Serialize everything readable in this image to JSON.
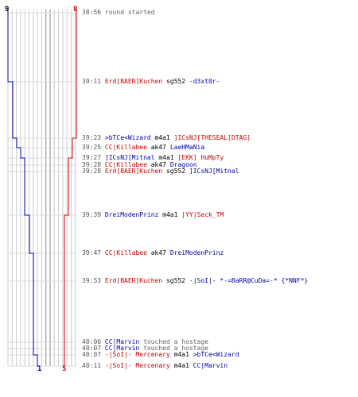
{
  "scores": {
    "blue_start": "9",
    "red_start": "8",
    "blue_end": "1",
    "red_end": "5"
  },
  "colors": {
    "blue_team": "#0000aa",
    "red_team": "#cc0000",
    "grid": "#cccccc",
    "grid_dark": "#888888",
    "timestamp": "#555555"
  },
  "events": [
    {
      "time": "38:56",
      "parts": [
        {
          "t": "round started",
          "c": "gray"
        }
      ]
    },
    {
      "time": "39:11",
      "parts": [
        {
          "t": "Erd[BAER]Kuchen",
          "c": "red"
        },
        {
          "t": " sg552 ",
          "c": "black"
        },
        {
          "t": "-d3xt0r-",
          "c": "blue"
        }
      ]
    },
    {
      "time": "39:23",
      "parts": [
        {
          "t": ">bTCe<Wizard",
          "c": "blue"
        },
        {
          "t": " m4a1 ",
          "c": "black"
        },
        {
          "t": "]ICsNJ[THESEAL[DTAG]",
          "c": "red"
        }
      ]
    },
    {
      "time": "39:25",
      "parts": [
        {
          "t": "CC|Killabee",
          "c": "red"
        },
        {
          "t": " ak47 ",
          "c": "black"
        },
        {
          "t": "LaeHMaNia",
          "c": "blue"
        }
      ]
    },
    {
      "time": "39:27",
      "parts": [
        {
          "t": "]ICsNJ[Mitnal",
          "c": "blue"
        },
        {
          "t": " m4a1 ",
          "c": "black"
        },
        {
          "t": "[EKK] HuMpTy",
          "c": "red"
        }
      ]
    },
    {
      "time": "39:28",
      "parts": [
        {
          "t": "CC|Killabee",
          "c": "red"
        },
        {
          "t": " ak47 ",
          "c": "black"
        },
        {
          "t": "Dragoon",
          "c": "blue"
        }
      ]
    },
    {
      "time": "39:28",
      "parts": [
        {
          "t": "Erd[BAER]Kuchen",
          "c": "red"
        },
        {
          "t": " sg552 ",
          "c": "black"
        },
        {
          "t": "]ICsNJ[Mitnal",
          "c": "blue"
        }
      ]
    },
    {
      "time": "39:39",
      "parts": [
        {
          "t": "DreiModenPrinz",
          "c": "blue"
        },
        {
          "t": " m4a1 ",
          "c": "black"
        },
        {
          "t": "|YY|Seck_TM",
          "c": "red"
        }
      ]
    },
    {
      "time": "39:47",
      "parts": [
        {
          "t": "CC|Killabee",
          "c": "red"
        },
        {
          "t": " ak47 ",
          "c": "black"
        },
        {
          "t": "DreiModenPrinz",
          "c": "blue"
        }
      ]
    },
    {
      "time": "39:53",
      "parts": [
        {
          "t": "Erd[BAER]Kuchen",
          "c": "red"
        },
        {
          "t": " sg552 ",
          "c": "black"
        },
        {
          "t": "-|SoI|- *-=BaRR@CuDa=-* {*NNF*}",
          "c": "blue"
        }
      ]
    },
    {
      "time": "40:06",
      "parts": [
        {
          "t": "CC|Marvin",
          "c": "blue"
        },
        {
          "t": " touched a hostage",
          "c": "gray"
        }
      ]
    },
    {
      "time": "40:07",
      "parts": [
        {
          "t": "CC|Marvin",
          "c": "blue"
        },
        {
          "t": " touched a hostage",
          "c": "gray"
        }
      ]
    },
    {
      "time": "40:07",
      "parts": [
        {
          "t": "-|SoI|- Mercenary",
          "c": "red"
        },
        {
          "t": " m4a1 ",
          "c": "black"
        },
        {
          "t": ">bTCe<Wizard",
          "c": "blue"
        }
      ]
    },
    {
      "time": "40:11",
      "parts": [
        {
          "t": "-|SoI|- Mercenary",
          "c": "red"
        },
        {
          "t": " m4a1 ",
          "c": "black"
        },
        {
          "t": "CC|Marvin",
          "c": "blue"
        }
      ]
    }
  ]
}
